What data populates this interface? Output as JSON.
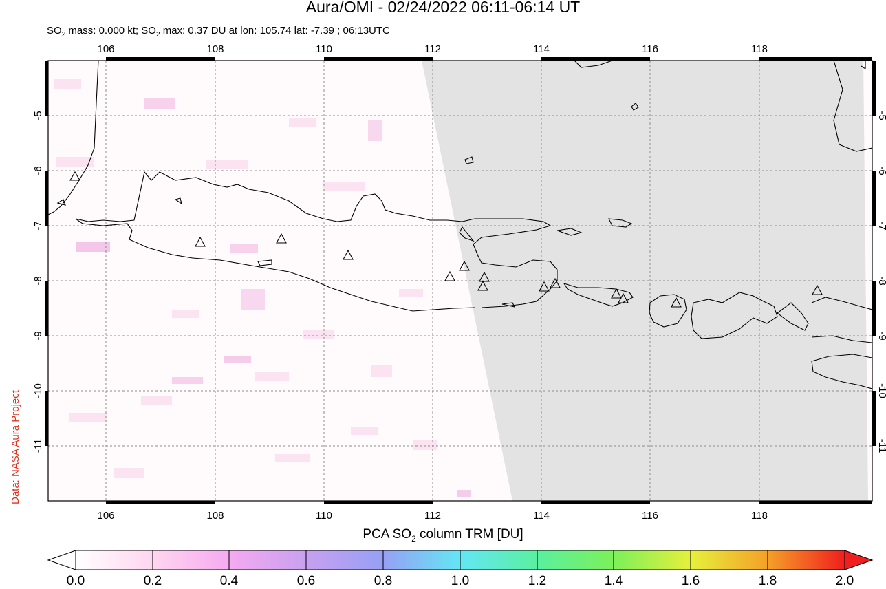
{
  "title": "Aura/OMI - 02/24/2022 06:11-06:14 UT",
  "subtitle": {
    "prefix": "SO",
    "sub": "2",
    "mid": " mass: 0.000 kt; SO",
    "sub2": "2",
    "suffix": " max: 0.37 DU at lon: 105.74 lat: -7.39 ; 06:13UTC"
  },
  "credit": "Data: NASA Aura Project",
  "map": {
    "lon_range": [
      105,
      120
    ],
    "lat_range": [
      -12,
      -4
    ],
    "lon_ticks": [
      "106",
      "108",
      "110",
      "112",
      "114",
      "116",
      "118"
    ],
    "lat_ticks": [
      "-5",
      "-6",
      "-7",
      "-8",
      "-9",
      "-10",
      "-11"
    ],
    "no_data_color": "#e3e3e3",
    "coast_color": "#000000",
    "volcano_count": 16
  },
  "colorbar": {
    "label_pre": "PCA SO",
    "label_sub": "2",
    "label_post": " column TRM [DU]",
    "ticks": [
      "0.0",
      "0.2",
      "0.4",
      "0.6",
      "0.8",
      "1.0",
      "1.2",
      "1.4",
      "1.6",
      "1.8",
      "2.0"
    ],
    "colors": [
      "#ffffff",
      "#ffd6f0",
      "#f5aaf0",
      "#c8a0f0",
      "#96a0f5",
      "#64e6f5",
      "#5af0a0",
      "#7df05a",
      "#e6f03c",
      "#f5a028",
      "#f01e1e"
    ]
  }
}
